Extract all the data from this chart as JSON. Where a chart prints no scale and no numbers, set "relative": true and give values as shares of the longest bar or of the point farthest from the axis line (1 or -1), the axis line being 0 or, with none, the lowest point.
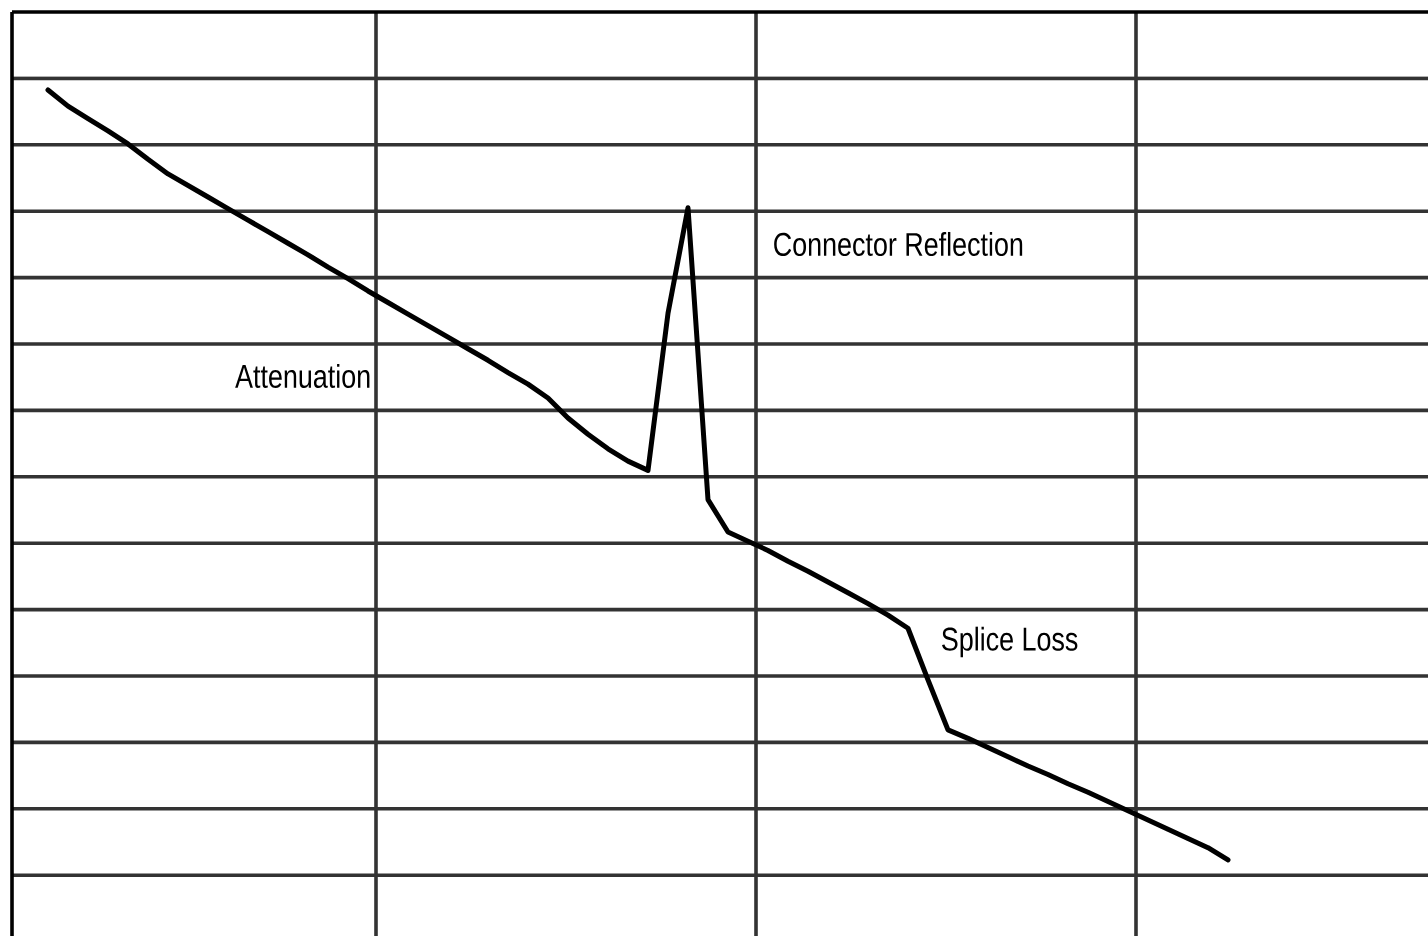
{
  "chart_data": {
    "type": "line",
    "relative": true,
    "grid": true,
    "categories": [
      null,
      null,
      null,
      null,
      null,
      null,
      null,
      null,
      null,
      null,
      null,
      null,
      null,
      null,
      null,
      null,
      null,
      null,
      null,
      null,
      null,
      null,
      null,
      null,
      null,
      null,
      null,
      null,
      null,
      null,
      null,
      null,
      null,
      null,
      null,
      null,
      null,
      null,
      null,
      null,
      null,
      null,
      null,
      null,
      null,
      null,
      null,
      null,
      null,
      null,
      null,
      null,
      null,
      null,
      null,
      null,
      null,
      null,
      null,
      null
    ],
    "series": [
      {
        "color": "#000000",
        "values": [
          1,
          0.979,
          0.963,
          0.947,
          0.93,
          0.91,
          0.891,
          0.876,
          0.861,
          0.846,
          0.831,
          0.816,
          0.801,
          0.786,
          0.77,
          0.755,
          0.739,
          0.724,
          0.709,
          0.694,
          0.679,
          0.664,
          0.649,
          0.633,
          0.618,
          0.6,
          0.574,
          0.553,
          0.534,
          0.518,
          0.506,
          0.71,
          0.847,
          0.468,
          0.426,
          0.414,
          0.402,
          0.388,
          0.375,
          0.361,
          0.347,
          0.333,
          0.318,
          0.301,
          0.234,
          0.169,
          0.158,
          0.146,
          0.134,
          0.122,
          0.111,
          0.099,
          0.088,
          0.076,
          0.064,
          0.052,
          0.04,
          0.028,
          0.016,
          0
        ]
      }
    ],
    "annotations": [
      "Attenuation",
      "Connector Reflection",
      "Splice Loss"
    ]
  }
}
